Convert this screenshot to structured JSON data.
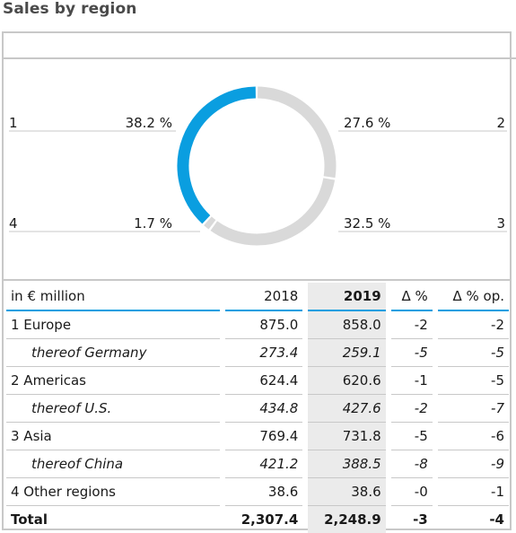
{
  "title": "Sales by region",
  "chart_data": {
    "type": "pie",
    "variant": "donut",
    "slices": [
      {
        "id": "1",
        "label": "1",
        "percent": 38.2,
        "percent_text": "38.2 %",
        "color": "#0a9ee0"
      },
      {
        "id": "2",
        "label": "2",
        "percent": 27.6,
        "percent_text": "27.6 %",
        "color": "#d9d9d9"
      },
      {
        "id": "3",
        "label": "3",
        "percent": 32.5,
        "percent_text": "32.5 %",
        "color": "#d9d9d9"
      },
      {
        "id": "4",
        "label": "4",
        "percent": 1.7,
        "percent_text": "1.7 %",
        "color": "#d9d9d9"
      }
    ]
  },
  "table": {
    "header": {
      "label": "in € million",
      "y2018": "2018",
      "y2019": "2019",
      "delta": "Δ %",
      "delta_op": "Δ % op."
    },
    "rows": [
      {
        "label": "1 Europe",
        "y2018": "875.0",
        "y2019": "858.0",
        "delta": "-2",
        "delta_op": "-2",
        "sub": false
      },
      {
        "label": "thereof Germany",
        "y2018": "273.4",
        "y2019": "259.1",
        "delta": "-5",
        "delta_op": "-5",
        "sub": true
      },
      {
        "label": "2 Americas",
        "y2018": "624.4",
        "y2019": "620.6",
        "delta": "-1",
        "delta_op": "-5",
        "sub": false
      },
      {
        "label": "thereof U.S.",
        "y2018": "434.8",
        "y2019": "427.6",
        "delta": "-2",
        "delta_op": "-7",
        "sub": true
      },
      {
        "label": "3 Asia",
        "y2018": "769.4",
        "y2019": "731.8",
        "delta": "-5",
        "delta_op": "-6",
        "sub": false
      },
      {
        "label": "thereof China",
        "y2018": "421.2",
        "y2019": "388.5",
        "delta": "-8",
        "delta_op": "-9",
        "sub": true
      },
      {
        "label": "4 Other regions",
        "y2018": "38.6",
        "y2019": "38.6",
        "delta": "-0",
        "delta_op": "-1",
        "sub": false
      }
    ],
    "total": {
      "label": "Total",
      "y2018": "2,307.4",
      "y2019": "2,248.9",
      "delta": "-3",
      "delta_op": "-4"
    }
  }
}
